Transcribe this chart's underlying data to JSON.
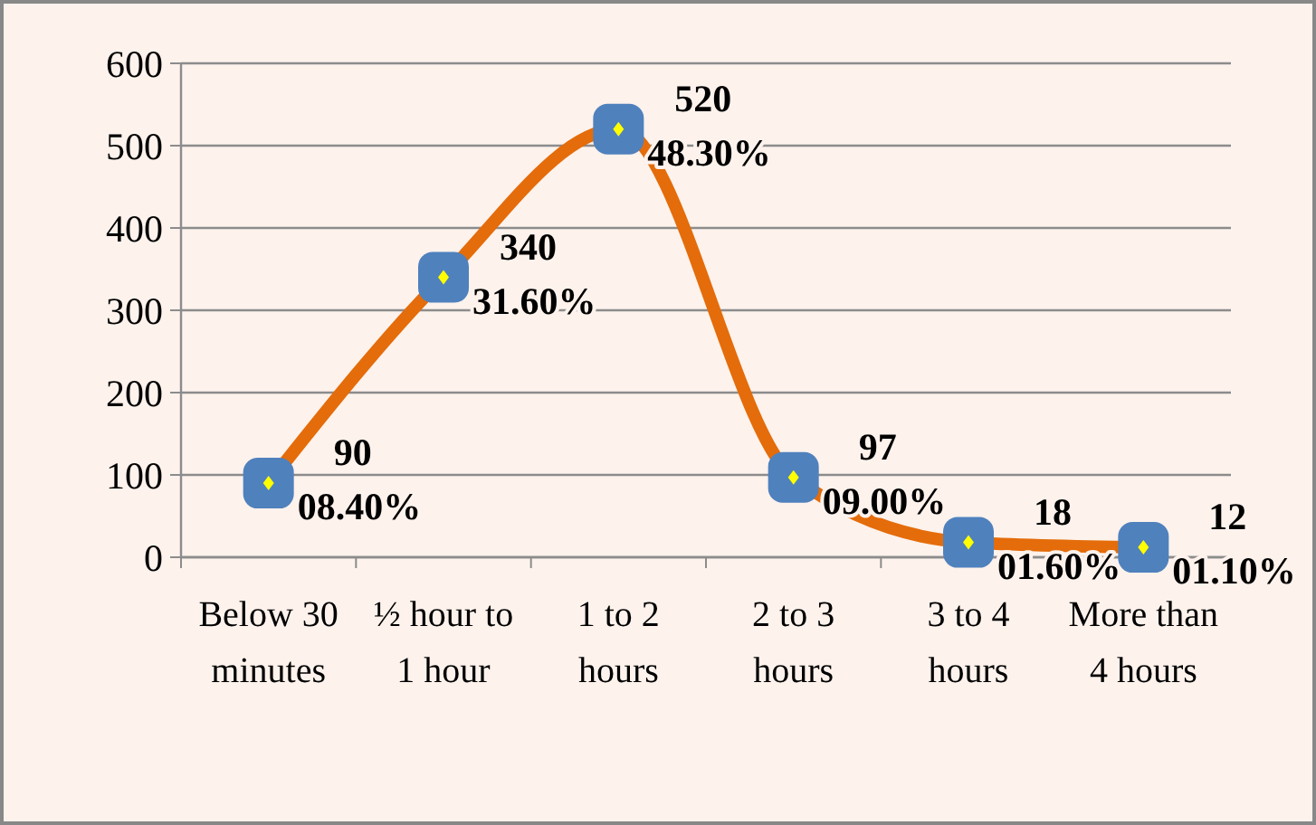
{
  "chart_data": {
    "type": "line",
    "categories": [
      "Below 30 minutes",
      "½ hour to 1 hour",
      "1 to 2 hours",
      "2 to 3 hours",
      "3 to 4 hours",
      "More than 4 hours"
    ],
    "series": [
      {
        "color": "#e46c0a",
        "values": [
          90,
          340,
          520,
          97,
          18,
          12
        ],
        "value_labels": [
          "90\n08.40%",
          "340\n31.60%",
          "520\n48.30%",
          "97\n09.00%",
          "18\n01.60%",
          "12\n01.10%"
        ]
      }
    ],
    "ylim": [
      0,
      600
    ],
    "yticks": [
      0,
      100,
      200,
      300,
      400,
      500,
      600
    ],
    "grid": "y",
    "marker": "square",
    "line_style": "solid"
  }
}
